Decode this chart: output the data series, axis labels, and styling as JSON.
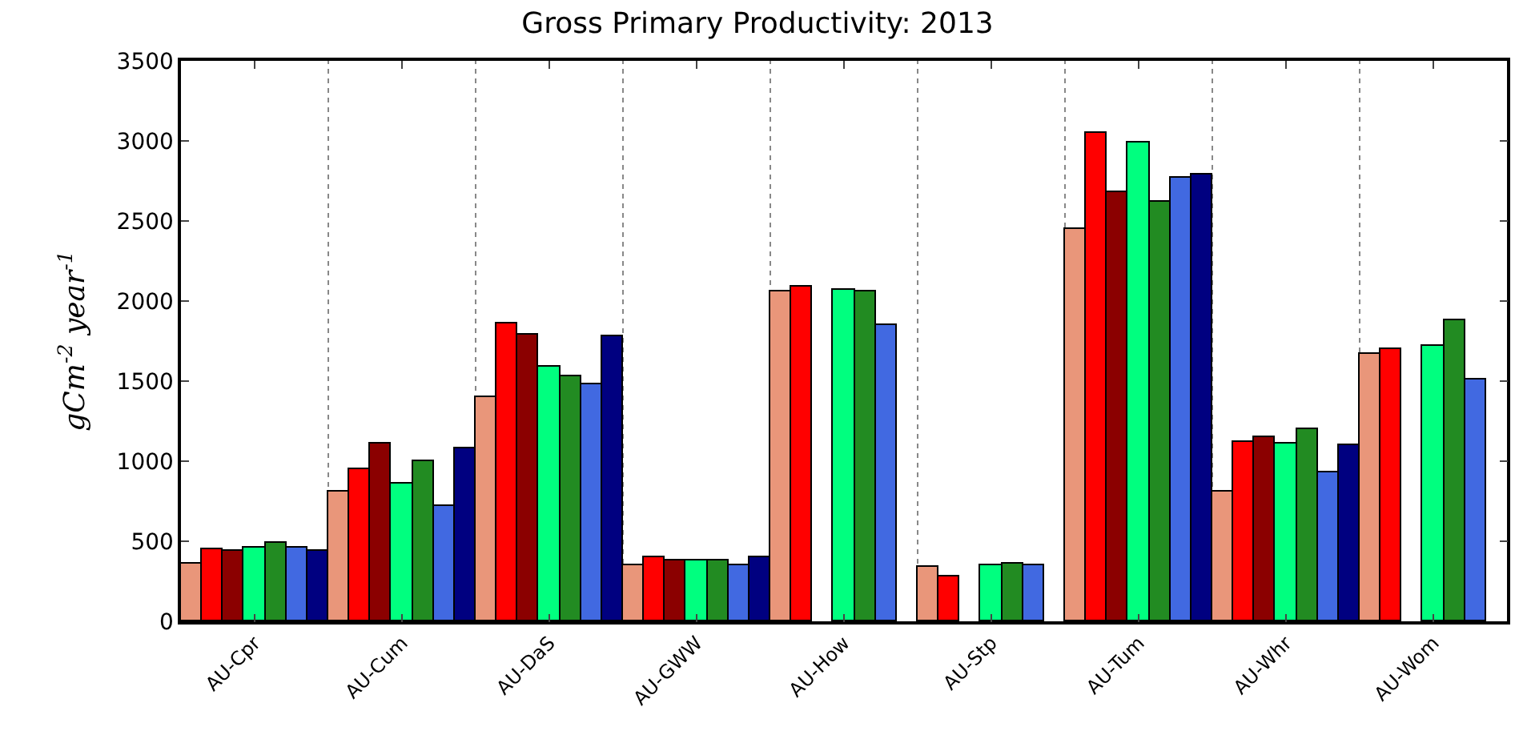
{
  "chart_data": {
    "type": "bar",
    "title": "Gross Primary Productivity: 2013",
    "ylabel": "gCm$^{-2}$ year$^{-1}$",
    "categories": [
      "AU-Cpr",
      "AU-Cum",
      "AU-DaS",
      "AU-GWW",
      "AU-How",
      "AU-Stp",
      "AU-Tum",
      "AU-Whr",
      "AU-Wom"
    ],
    "series": [
      {
        "color": "#e9967a",
        "values": [
          360,
          810,
          1400,
          350,
          2060,
          340,
          2450,
          810,
          1670
        ]
      },
      {
        "color": "#ff0000",
        "values": [
          450,
          950,
          1860,
          400,
          2090,
          280,
          3050,
          1120,
          1700
        ]
      },
      {
        "color": "#8b0000",
        "values": [
          440,
          1110,
          1790,
          380,
          null,
          null,
          2680,
          1150,
          null
        ]
      },
      {
        "color": "#00ff7f",
        "values": [
          460,
          860,
          1590,
          380,
          2070,
          350,
          2990,
          1110,
          1720
        ]
      },
      {
        "color": "#228b22",
        "values": [
          490,
          1000,
          1530,
          380,
          2060,
          360,
          2620,
          1200,
          1880
        ]
      },
      {
        "color": "#4169e1",
        "values": [
          460,
          720,
          1480,
          350,
          1850,
          350,
          2770,
          930,
          1510
        ]
      },
      {
        "color": "#000080",
        "values": [
          440,
          1080,
          1780,
          400,
          null,
          null,
          2790,
          1100,
          null
        ]
      }
    ],
    "ylim": [
      0,
      3500
    ],
    "yticks": [
      0,
      500,
      1000,
      1500,
      2000,
      2500,
      3000,
      3500
    ],
    "grid": "x"
  }
}
